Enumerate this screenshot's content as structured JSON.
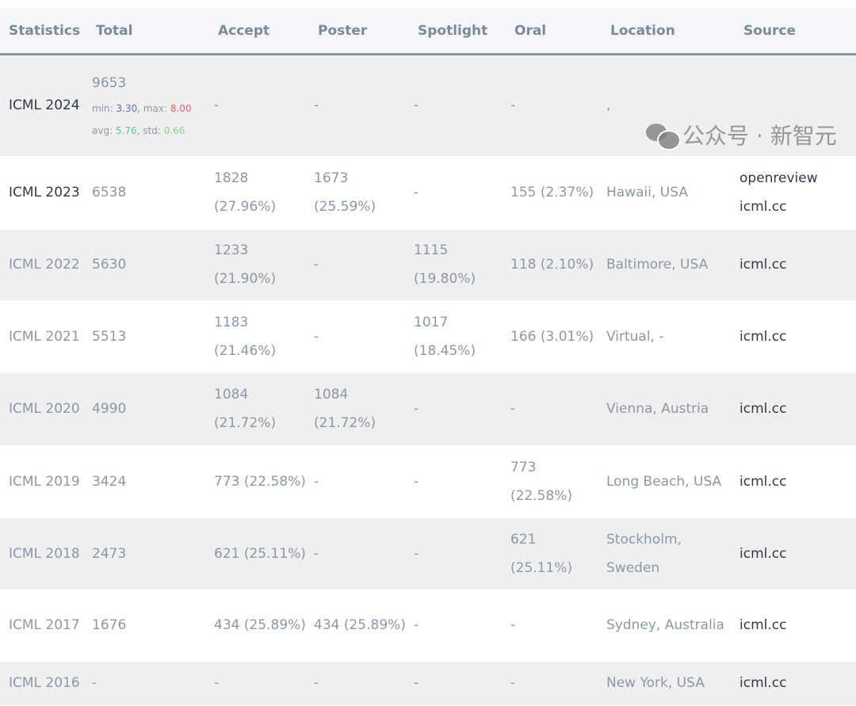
{
  "columns": [
    "Statistics",
    "Total",
    "Accept",
    "Poster",
    "Spotlight",
    "Oral",
    "Location",
    "Source"
  ],
  "rows": [
    {
      "name": "ICML 2024",
      "total": "9653",
      "stats": {
        "min_label": "min: ",
        "min": "3.30",
        "max_label": ", max: ",
        "max": "8.00",
        "avg_label": "avg: ",
        "avg": "5.76",
        "std_label": ", std: ",
        "std": "0.66"
      },
      "accept": "-",
      "poster": "-",
      "spotlight": "-",
      "oral": "-",
      "location": ",",
      "source": [],
      "dark": true
    },
    {
      "name": "ICML 2023",
      "total": "6538",
      "accept": "1828 (27.96%)",
      "poster": "1673 (25.59%)",
      "spotlight": "-",
      "oral": "155 (2.37%)",
      "location": "Hawaii, USA",
      "source": [
        "openreview",
        "icml.cc"
      ],
      "dark": true
    },
    {
      "name": "ICML 2022",
      "total": "5630",
      "accept": "1233 (21.90%)",
      "poster": "-",
      "spotlight": "1115 (19.80%)",
      "oral": "118 (2.10%)",
      "location": "Baltimore, USA",
      "source": [
        "icml.cc"
      ]
    },
    {
      "name": "ICML 2021",
      "total": "5513",
      "accept": "1183 (21.46%)",
      "poster": "-",
      "spotlight": "1017 (18.45%)",
      "oral": "166 (3.01%)",
      "location": "Virtual, -",
      "source": [
        "icml.cc"
      ]
    },
    {
      "name": "ICML 2020",
      "total": "4990",
      "accept": "1084 (21.72%)",
      "poster": "1084 (21.72%)",
      "spotlight": "-",
      "oral": "-",
      "location": "Vienna, Austria",
      "source": [
        "icml.cc"
      ]
    },
    {
      "name": "ICML 2019",
      "total": "3424",
      "accept": "773 (22.58%)",
      "poster": "-",
      "spotlight": "-",
      "oral": "773 (22.58%)",
      "location": "Long Beach, USA",
      "source": [
        "icml.cc"
      ]
    },
    {
      "name": "ICML 2018",
      "total": "2473",
      "accept": "621 (25.11%)",
      "poster": "-",
      "spotlight": "-",
      "oral": "621 (25.11%)",
      "location": "Stockholm, Sweden",
      "source": [
        "icml.cc"
      ]
    },
    {
      "name": "ICML 2017",
      "total": "1676",
      "accept": "434 (25.89%)",
      "poster": "434 (25.89%)",
      "spotlight": "-",
      "oral": "-",
      "location": "Sydney, Australia",
      "source": [
        "icml.cc"
      ]
    },
    {
      "name": "ICML 2016",
      "total": "-",
      "accept": "-",
      "poster": "-",
      "spotlight": "-",
      "oral": "-",
      "location": "New York, USA",
      "source": [
        "icml.cc"
      ]
    }
  ],
  "colors": {
    "min": "#5b6fb0",
    "max": "#e8606a",
    "avg": "#5fc2b8",
    "std": "#8fcf8f"
  },
  "watermark": {
    "icon": "wechat-icon",
    "text": "公众号 · 新智元"
  }
}
